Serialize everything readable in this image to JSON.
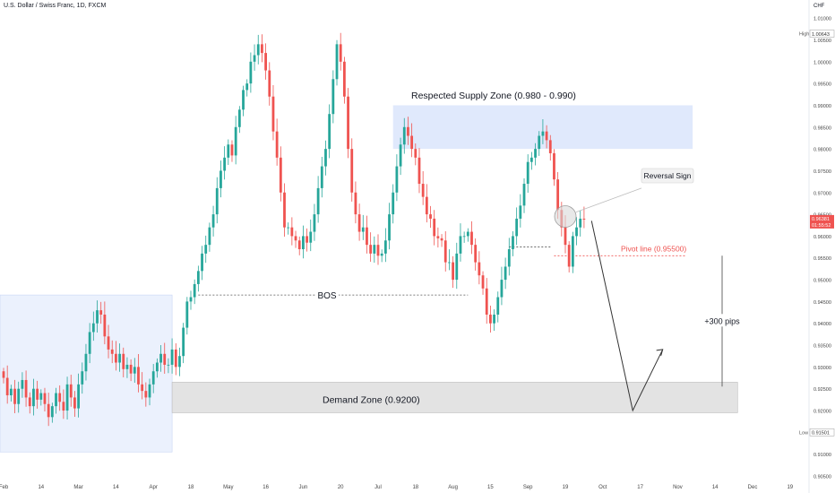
{
  "header": {
    "symbol_title": "U.S. Dollar / Swiss Franc, 1D, FXCM",
    "currency": "CHF"
  },
  "price_labels": {
    "high": {
      "tag": "High",
      "value": "1.00643"
    },
    "low": {
      "tag": "Low",
      "value": "0.91501"
    },
    "current": {
      "value": "0.96381",
      "countdown": "01:55:52"
    }
  },
  "colors": {
    "up": "#26a69a",
    "down": "#ef5350",
    "supply_zone": "#dbe5fb",
    "demand_zone": "#e3e3e3",
    "range_box": "#e6edfc",
    "pivot": "#ef5350",
    "annotation": "#131722"
  },
  "annotations": {
    "supply": "Respected Supply Zone (0.980 - 0.990)",
    "demand": "Demand Zone (0.9200)",
    "bos": "BOS",
    "reversal": "Reversal Sign",
    "pivot": "Pivot line (0.95500)",
    "pips": "+300 pips"
  },
  "chart_data": {
    "type": "candlestick",
    "title": "U.S. Dollar / Swiss Franc, 1D, FXCM",
    "ylim": [
      0.905,
      1.0125
    ],
    "y_ticks": [
      "0.90500",
      "0.91000",
      "0.91500",
      "0.92000",
      "0.92500",
      "0.93000",
      "0.93500",
      "0.94000",
      "0.94500",
      "0.95000",
      "0.95500",
      "0.96000",
      "0.96500",
      "0.97000",
      "0.97500",
      "0.98000",
      "0.98500",
      "0.99000",
      "0.99500",
      "1.00000",
      "1.00500",
      "1.01000"
    ],
    "x_labels": [
      "Feb",
      "14",
      "Mar",
      "14",
      "Apr",
      "18",
      "May",
      "16",
      "Jun",
      "20",
      "Jul",
      "18",
      "Aug",
      "15",
      "Sep",
      "19",
      "Oct",
      "17",
      "Nov",
      "14",
      "Dec",
      "19"
    ],
    "x_label_positions": [
      0,
      10,
      20,
      30,
      40,
      50,
      60,
      70,
      80,
      90,
      100,
      110,
      120,
      130,
      140,
      150,
      160,
      170,
      180,
      190,
      200,
      210
    ],
    "zones": {
      "supply": [
        0.98,
        0.99
      ],
      "demand": [
        0.9195,
        0.9265
      ]
    },
    "levels": {
      "bos": 0.9465,
      "pivot": 0.9555
    },
    "projection": [
      [
        157,
        0.9635
      ],
      [
        168,
        0.92
      ],
      [
        176,
        0.934
      ]
    ],
    "closes": [
      0.9275,
      0.9235,
      0.925,
      0.9215,
      0.925,
      0.927,
      0.923,
      0.921,
      0.925,
      0.9225,
      0.924,
      0.9215,
      0.9185,
      0.921,
      0.924,
      0.922,
      0.92,
      0.926,
      0.923,
      0.9205,
      0.926,
      0.929,
      0.933,
      0.938,
      0.94,
      0.943,
      0.942,
      0.937,
      0.934,
      0.933,
      0.931,
      0.933,
      0.9295,
      0.9305,
      0.9285,
      0.93,
      0.926,
      0.9245,
      0.923,
      0.926,
      0.929,
      0.931,
      0.933,
      0.9305,
      0.9305,
      0.934,
      0.93,
      0.9325,
      0.939,
      0.945,
      0.946,
      0.949,
      0.952,
      0.956,
      0.958,
      0.962,
      0.965,
      0.971,
      0.975,
      0.978,
      0.981,
      0.9785,
      0.985,
      0.989,
      0.9935,
      0.995,
      1.0,
      1.0015,
      1.004,
      1.002,
      0.998,
      0.992,
      0.984,
      0.978,
      0.97,
      0.962,
      0.962,
      0.96,
      0.959,
      0.957,
      0.96,
      0.9585,
      0.961,
      0.965,
      0.971,
      0.976,
      0.98,
      0.988,
      0.996,
      1.004,
      1.0,
      0.992,
      0.98,
      0.97,
      0.965,
      0.961,
      0.962,
      0.958,
      0.956,
      0.958,
      0.9555,
      0.956,
      0.959,
      0.965,
      0.97,
      0.976,
      0.981,
      0.985,
      0.983,
      0.98,
      0.978,
      0.972,
      0.969,
      0.965,
      0.964,
      0.96,
      0.9595,
      0.959,
      0.954,
      0.954,
      0.95,
      0.956,
      0.96,
      0.96,
      0.961,
      0.958,
      0.954,
      0.951,
      0.948,
      0.942,
      0.94,
      0.942,
      0.946,
      0.95,
      0.953,
      0.957,
      0.96,
      0.964,
      0.967,
      0.972,
      0.977,
      0.978,
      0.98,
      0.983,
      0.984,
      0.982,
      0.979,
      0.973,
      0.966,
      0.962,
      0.958,
      0.953,
      0.96,
      0.962,
      0.964,
      0.9638
    ]
  }
}
